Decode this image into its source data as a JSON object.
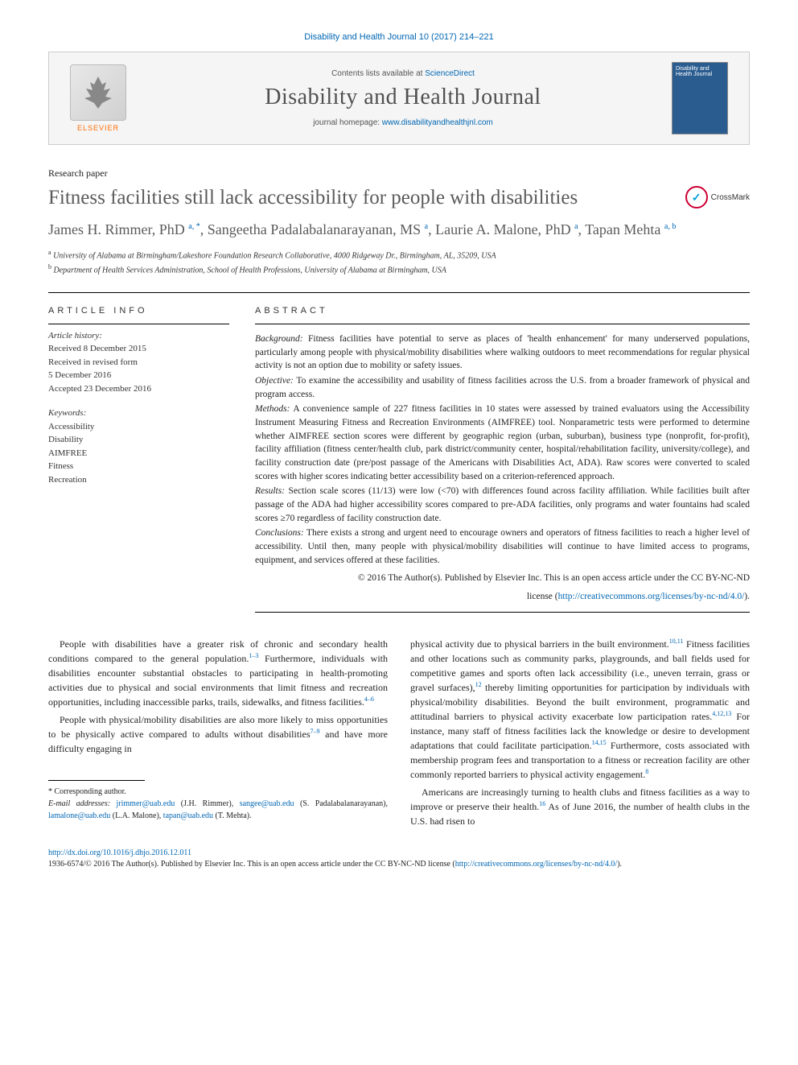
{
  "top_citation": "Disability and Health Journal 10 (2017) 214–221",
  "masthead": {
    "contents_prefix": "Contents lists available at ",
    "contents_link": "ScienceDirect",
    "journal_name": "Disability and Health Journal",
    "homepage_prefix": "journal homepage: ",
    "homepage_url": "www.disabilityandhealthjnl.com",
    "publisher": "ELSEVIER",
    "cover_text": "Disability and Health Journal"
  },
  "article_type": "Research paper",
  "title": "Fitness facilities still lack accessibility for people with disabilities",
  "crossmark_label": "CrossMark",
  "authors_html": "James H. Rimmer, PhD <sup>a, *</sup>, Sangeetha Padalabalanarayanan, MS <sup>a</sup>, Laurie A. Malone, PhD <sup>a</sup>, Tapan Mehta <sup>a, b</sup>",
  "affiliations": [
    {
      "key": "a",
      "text": "University of Alabama at Birmingham/Lakeshore Foundation Research Collaborative, 4000 Ridgeway Dr., Birmingham, AL, 35209, USA"
    },
    {
      "key": "b",
      "text": "Department of Health Services Administration, School of Health Professions, University of Alabama at Birmingham, USA"
    }
  ],
  "article_info_head": "ARTICLE INFO",
  "history": {
    "label": "Article history:",
    "received": "Received 8 December 2015",
    "revised_label": "Received in revised form",
    "revised_date": "5 December 2016",
    "accepted": "Accepted 23 December 2016"
  },
  "keywords_label": "Keywords:",
  "keywords": [
    "Accessibility",
    "Disability",
    "AIMFREE",
    "Fitness",
    "Recreation"
  ],
  "abstract_head": "ABSTRACT",
  "abstract": {
    "background": "Fitness facilities have potential to serve as places of 'health enhancement' for many underserved populations, particularly among people with physical/mobility disabilities where walking outdoors to meet recommendations for regular physical activity is not an option due to mobility or safety issues.",
    "objective": "To examine the accessibility and usability of fitness facilities across the U.S. from a broader framework of physical and program access.",
    "methods": "A convenience sample of 227 fitness facilities in 10 states were assessed by trained evaluators using the Accessibility Instrument Measuring Fitness and Recreation Environments (AIMFREE) tool. Nonparametric tests were performed to determine whether AIMFREE section scores were different by geographic region (urban, suburban), business type (nonprofit, for-profit), facility affiliation (fitness center/health club, park district/community center, hospital/rehabilitation facility, university/college), and facility construction date (pre/post passage of the Americans with Disabilities Act, ADA). Raw scores were converted to scaled scores with higher scores indicating better accessibility based on a criterion-referenced approach.",
    "results": "Section scale scores (11/13) were low (<70) with differences found across facility affiliation. While facilities built after passage of the ADA had higher accessibility scores compared to pre-ADA facilities, only programs and water fountains had scaled scores ≥70 regardless of facility construction date.",
    "conclusions": "There exists a strong and urgent need to encourage owners and operators of fitness facilities to reach a higher level of accessibility. Until then, many people with physical/mobility disabilities will continue to have limited access to programs, equipment, and services offered at these facilities.",
    "copyright1": "© 2016 The Author(s). Published by Elsevier Inc. This is an open access article under the CC BY-NC-ND",
    "copyright2_prefix": "license (",
    "copyright2_link": "http://creativecommons.org/licenses/by-nc-nd/4.0/",
    "copyright2_suffix": ")."
  },
  "body": {
    "left": {
      "p1_a": "People with disabilities have a greater risk of chronic and secondary health conditions compared to the general population.",
      "p1_ref1": "1–3",
      "p1_b": " Furthermore, individuals with disabilities encounter substantial obstacles to participating in health-promoting activities due to physical and social environments that limit fitness and recreation opportunities, including inaccessible parks, trails, sidewalks, and fitness facilities.",
      "p1_ref2": "4–6",
      "p2_a": "People with physical/mobility disabilities are also more likely to miss opportunities to be physically active compared to adults without disabilities",
      "p2_ref1": "7–9",
      "p2_b": " and have more difficulty engaging in"
    },
    "right": {
      "p1_a": "physical activity due to physical barriers in the built environment.",
      "p1_ref1": "10,11",
      "p1_b": " Fitness facilities and other locations such as community parks, playgrounds, and ball fields used for competitive games and sports often lack accessibility (i.e., uneven terrain, grass or gravel surfaces),",
      "p1_ref2": "12",
      "p1_c": " thereby limiting opportunities for participation by individuals with physical/mobility disabilities. Beyond the built environment, programmatic and attitudinal barriers to physical activity exacerbate low participation rates.",
      "p1_ref3": "4,12,13",
      "p1_d": " For instance, many staff of fitness facilities lack the knowledge or desire to development adaptations that could facilitate participation.",
      "p1_ref4": "14,15",
      "p1_e": " Furthermore, costs associated with membership program fees and transportation to a fitness or recreation facility are other commonly reported barriers to physical activity engagement.",
      "p1_ref5": "8",
      "p2_a": "Americans are increasingly turning to health clubs and fitness facilities as a way to improve or preserve their health.",
      "p2_ref1": "16",
      "p2_b": " As of June 2016, the number of health clubs in the U.S. had risen to"
    }
  },
  "footnotes": {
    "corresponding": "* Corresponding author.",
    "email_label": "E-mail addresses:",
    "emails": [
      {
        "addr": "jrimmer@uab.edu",
        "who": "(J.H. Rimmer)"
      },
      {
        "addr": "sangee@uab.edu",
        "who": "(S. Padalabalanarayanan)"
      },
      {
        "addr": "lamalone@uab.edu",
        "who": "(L.A. Malone)"
      },
      {
        "addr": "tapan@uab.edu",
        "who": "(T. Mehta)"
      }
    ]
  },
  "footer": {
    "doi": "http://dx.doi.org/10.1016/j.dhjo.2016.12.011",
    "issn_line_a": "1936-6574/© 2016 The Author(s). Published by Elsevier Inc. This is an open access article under the CC BY-NC-ND license (",
    "issn_link": "http://creativecommons.org/licenses/by-nc-nd/4.0/",
    "issn_line_b": ")."
  },
  "labels": {
    "background": "Background:",
    "objective": "Objective:",
    "methods": "Methods:",
    "results": "Results:",
    "conclusions": "Conclusions:"
  },
  "colors": {
    "link": "#0066b3",
    "accent_orange": "#ff6c00",
    "text": "#222222",
    "heading_gray": "#5a5a5a",
    "border": "#cccccc",
    "cover_bg": "#2a5c8f"
  },
  "typography": {
    "title_size_pt": 25,
    "author_size_pt": 18,
    "journal_size_pt": 28,
    "body_size_pt": 12,
    "abstract_size_pt": 11.5,
    "footnote_size_pt": 10
  }
}
